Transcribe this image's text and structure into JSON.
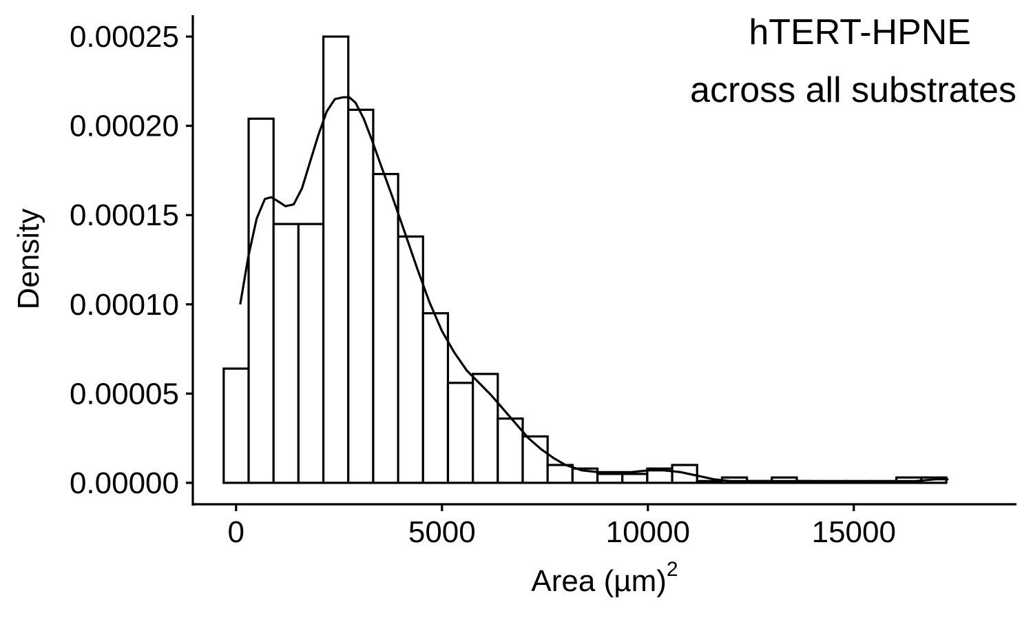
{
  "chart_data": {
    "type": "bar",
    "subtype": "histogram-with-density",
    "title": "",
    "annotation": [
      "hTERT-HPNE",
      "across all substrates"
    ],
    "xlabel": "Area (µm)",
    "xlabel_superscript": "2",
    "ylabel": "Density",
    "xlim": [
      -1050,
      18950
    ],
    "ylim": [
      -1.2e-05,
      0.000262
    ],
    "xticks": [
      0,
      5000,
      10000,
      15000
    ],
    "xtick_labels": [
      "0",
      "5000",
      "10000",
      "15000"
    ],
    "yticks": [
      0,
      5e-05,
      0.0001,
      0.00015,
      0.0002,
      0.00025
    ],
    "ytick_labels": [
      "0.00000",
      "0.00005",
      "0.00010",
      "0.00015",
      "0.00020",
      "0.00025"
    ],
    "bin_width": 605,
    "bins": [
      {
        "x0": -300,
        "x1": 305,
        "value": 6.4e-05
      },
      {
        "x0": 305,
        "x1": 910,
        "value": 0.000204
      },
      {
        "x0": 910,
        "x1": 1515,
        "value": 0.000145
      },
      {
        "x0": 1515,
        "x1": 2120,
        "value": 0.000145
      },
      {
        "x0": 2120,
        "x1": 2725,
        "value": 0.00025
      },
      {
        "x0": 2725,
        "x1": 3330,
        "value": 0.000209
      },
      {
        "x0": 3330,
        "x1": 3935,
        "value": 0.000173
      },
      {
        "x0": 3935,
        "x1": 4540,
        "value": 0.000138
      },
      {
        "x0": 4540,
        "x1": 5145,
        "value": 9.5e-05
      },
      {
        "x0": 5145,
        "x1": 5750,
        "value": 5.6e-05
      },
      {
        "x0": 5750,
        "x1": 6355,
        "value": 6.1e-05
      },
      {
        "x0": 6355,
        "x1": 6960,
        "value": 3.6e-05
      },
      {
        "x0": 6960,
        "x1": 7565,
        "value": 2.6e-05
      },
      {
        "x0": 7565,
        "x1": 8170,
        "value": 1e-05
      },
      {
        "x0": 8170,
        "x1": 8775,
        "value": 8e-06
      },
      {
        "x0": 8775,
        "x1": 9380,
        "value": 5e-06
      },
      {
        "x0": 9380,
        "x1": 9985,
        "value": 5e-06
      },
      {
        "x0": 9985,
        "x1": 10590,
        "value": 8e-06
      },
      {
        "x0": 10590,
        "x1": 11195,
        "value": 1e-05
      },
      {
        "x0": 11195,
        "x1": 11800,
        "value": 1e-06
      },
      {
        "x0": 11800,
        "x1": 12405,
        "value": 3e-06
      },
      {
        "x0": 12405,
        "x1": 13010,
        "value": 1e-06
      },
      {
        "x0": 13010,
        "x1": 13615,
        "value": 3e-06
      },
      {
        "x0": 13615,
        "x1": 14220,
        "value": 1e-06
      },
      {
        "x0": 14220,
        "x1": 14825,
        "value": 1e-06
      },
      {
        "x0": 14825,
        "x1": 15430,
        "value": 1e-06
      },
      {
        "x0": 15430,
        "x1": 16035,
        "value": 1e-06
      },
      {
        "x0": 16035,
        "x1": 16640,
        "value": 3e-06
      },
      {
        "x0": 16640,
        "x1": 17245,
        "value": 3e-06
      }
    ],
    "density_curve": {
      "x": [
        100,
        300,
        500,
        700,
        850,
        1000,
        1200,
        1400,
        1600,
        1800,
        2000,
        2200,
        2400,
        2600,
        2750,
        2900,
        3100,
        3300,
        3500,
        3800,
        4100,
        4400,
        4700,
        5000,
        5300,
        5600,
        5900,
        6200,
        6500,
        6800,
        7100,
        7400,
        7700,
        8000,
        8400,
        8800,
        9200,
        9600,
        10000,
        10400,
        10800,
        11200,
        11600,
        12000,
        12500,
        13000,
        13500,
        14000,
        14500,
        15000,
        15500,
        16000,
        16500,
        17000,
        17300
      ],
      "y": [
        0.0001,
        0.000127,
        0.000148,
        0.000159,
        0.00016,
        0.000158,
        0.000155,
        0.000156,
        0.000165,
        0.00018,
        0.000195,
        0.000208,
        0.000215,
        0.000216,
        0.000216,
        0.000213,
        0.000204,
        0.000192,
        0.000179,
        0.00016,
        0.00014,
        0.00012,
        0.000101,
        8.5e-05,
        7.3e-05,
        6.3e-05,
        5.6e-05,
        4.9e-05,
        4.1e-05,
        3.3e-05,
        2.5e-05,
        1.9e-05,
        1.4e-05,
        1e-05,
        7e-06,
        6e-06,
        6e-06,
        6e-06,
        7e-06,
        7e-06,
        6e-06,
        4e-06,
        2e-06,
        1e-06,
        1e-06,
        1e-06,
        1e-06,
        1e-06,
        0.0,
        0.0,
        0.0,
        1e-06,
        1e-06,
        2e-06,
        2e-06
      ]
    },
    "grid": false,
    "legend": "none"
  }
}
